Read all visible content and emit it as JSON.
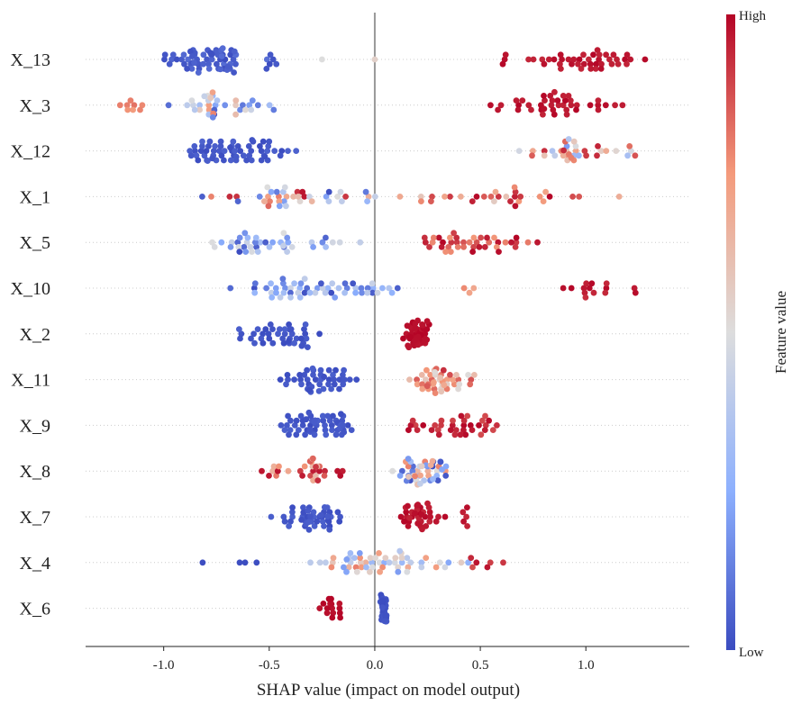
{
  "chart_data": {
    "type": "scatter",
    "xlabel": "SHAP value (impact on model output)",
    "xlim": [
      -1.37,
      1.49
    ],
    "xticks": [
      -1.0,
      -0.5,
      0.0,
      0.5,
      1.0
    ],
    "xtick_labels": [
      "-1.0",
      "-0.5",
      "0.0",
      "0.5",
      "1.0"
    ],
    "features": [
      "X_13",
      "X_3",
      "X_12",
      "X_1",
      "X_5",
      "X_10",
      "X_2",
      "X_11",
      "X_9",
      "X_8",
      "X_7",
      "X_4",
      "X_6"
    ],
    "colorbar": {
      "title": "Feature value",
      "high_label": "High",
      "low_label": "Low",
      "low_color": "#3b4cc0",
      "mid_color": "#dddddd",
      "high_color": "#b40426"
    },
    "zero_line": true,
    "series": [
      {
        "feature": "X_13",
        "groups": [
          {
            "min": -1.08,
            "max": -0.6,
            "peak": -0.78,
            "n": 60,
            "v": [
              0.0,
              0.08
            ]
          },
          {
            "min": -0.58,
            "max": -0.43,
            "peak": -0.52,
            "n": 6,
            "v": [
              0.0,
              0.1
            ]
          },
          {
            "min": -0.25,
            "max": -0.25,
            "peak": -0.25,
            "n": 1,
            "v": [
              0.5,
              0.5
            ]
          },
          {
            "min": 0.0,
            "max": 0.0,
            "peak": 0.0,
            "n": 1,
            "v": [
              0.55,
              0.55
            ]
          },
          {
            "min": 0.56,
            "max": 0.65,
            "peak": 0.6,
            "n": 3,
            "v": [
              0.96,
              1.0
            ]
          },
          {
            "min": 0.7,
            "max": 1.37,
            "peak": 1.0,
            "n": 40,
            "v": [
              0.94,
              1.0
            ]
          }
        ]
      },
      {
        "feature": "X_3",
        "groups": [
          {
            "min": -1.25,
            "max": -1.05,
            "peak": -1.15,
            "n": 8,
            "v": [
              0.74,
              0.82
            ]
          },
          {
            "min": -1.0,
            "max": -0.43,
            "peak": -0.78,
            "n": 35,
            "v": [
              0.0,
              0.8
            ]
          },
          {
            "min": 0.53,
            "max": 1.25,
            "peak": 0.85,
            "n": 40,
            "v": [
              0.95,
              1.0
            ]
          }
        ]
      },
      {
        "feature": "X_12",
        "groups": [
          {
            "min": -0.99,
            "max": -0.34,
            "peak": -0.7,
            "n": 60,
            "v": [
              0.0,
              0.06
            ]
          },
          {
            "min": 0.58,
            "max": 1.35,
            "peak": 0.92,
            "n": 35,
            "v": [
              0.2,
              0.95
            ]
          }
        ]
      },
      {
        "feature": "X_1",
        "groups": [
          {
            "min": -0.91,
            "max": 0.05,
            "peak": -0.5,
            "n": 40,
            "v": [
              0.0,
              1.0
            ]
          },
          {
            "min": 0.05,
            "max": 1.33,
            "peak": 0.55,
            "n": 30,
            "v": [
              0.55,
              1.0
            ]
          }
        ]
      },
      {
        "feature": "X_5",
        "groups": [
          {
            "min": -0.95,
            "max": 0.04,
            "peak": -0.55,
            "n": 40,
            "v": [
              0.0,
              0.5
            ]
          },
          {
            "min": 0.18,
            "max": 0.8,
            "peak": 0.45,
            "n": 40,
            "v": [
              0.75,
              1.0
            ]
          }
        ]
      },
      {
        "feature": "X_10",
        "groups": [
          {
            "min": -0.75,
            "max": 0.18,
            "peak": -0.16,
            "n": 55,
            "v": [
              0.0,
              0.45
            ]
          },
          {
            "min": 0.32,
            "max": 0.55,
            "peak": 0.45,
            "n": 3,
            "v": [
              0.7,
              0.78
            ]
          },
          {
            "min": 0.85,
            "max": 1.33,
            "peak": 1.0,
            "n": 14,
            "v": [
              0.92,
              1.0
            ]
          }
        ]
      },
      {
        "feature": "X_2",
        "groups": [
          {
            "min": -0.69,
            "max": -0.25,
            "peak": -0.4,
            "n": 40,
            "v": [
              0.0,
              0.05
            ]
          },
          {
            "min": 0.13,
            "max": 0.27,
            "peak": 0.18,
            "n": 55,
            "v": [
              0.97,
              1.0
            ]
          }
        ]
      },
      {
        "feature": "X_11",
        "groups": [
          {
            "min": -0.49,
            "max": -0.08,
            "peak": -0.25,
            "n": 45,
            "v": [
              0.0,
              0.05
            ]
          },
          {
            "min": 0.15,
            "max": 0.51,
            "peak": 0.28,
            "n": 45,
            "v": [
              0.5,
              0.95
            ]
          }
        ]
      },
      {
        "feature": "X_9",
        "groups": [
          {
            "min": -0.48,
            "max": -0.09,
            "peak": -0.18,
            "n": 55,
            "v": [
              0.0,
              0.05
            ]
          },
          {
            "min": 0.12,
            "max": 0.67,
            "peak": 0.45,
            "n": 35,
            "v": [
              0.88,
              1.0
            ]
          }
        ]
      },
      {
        "feature": "X_8",
        "groups": [
          {
            "min": -0.73,
            "max": 0.0,
            "peak": -0.3,
            "n": 30,
            "v": [
              0.6,
              1.0
            ]
          },
          {
            "min": 0.07,
            "max": 0.41,
            "peak": 0.22,
            "n": 45,
            "v": [
              0.0,
              0.8
            ]
          }
        ]
      },
      {
        "feature": "X_7",
        "groups": [
          {
            "min": -0.5,
            "max": -0.14,
            "peak": -0.22,
            "n": 45,
            "v": [
              0.0,
              0.05
            ]
          },
          {
            "min": 0.11,
            "max": 0.48,
            "peak": 0.2,
            "n": 40,
            "v": [
              0.94,
              1.0
            ]
          }
        ]
      },
      {
        "feature": "X_4",
        "groups": [
          {
            "min": -1.05,
            "max": -0.38,
            "peak": -0.6,
            "n": 4,
            "v": [
              0.0,
              0.05
            ]
          },
          {
            "min": -0.35,
            "max": 0.5,
            "peak": -0.1,
            "n": 55,
            "v": [
              0.2,
              0.8
            ]
          },
          {
            "min": 0.4,
            "max": 0.73,
            "peak": 0.55,
            "n": 6,
            "v": [
              0.85,
              1.0
            ]
          }
        ]
      },
      {
        "feature": "X_6",
        "groups": [
          {
            "min": -0.29,
            "max": -0.14,
            "peak": -0.2,
            "n": 15,
            "v": [
              0.97,
              1.0
            ]
          },
          {
            "min": 0.02,
            "max": 0.06,
            "peak": 0.04,
            "n": 45,
            "v": [
              0.0,
              0.03
            ]
          }
        ]
      }
    ]
  }
}
